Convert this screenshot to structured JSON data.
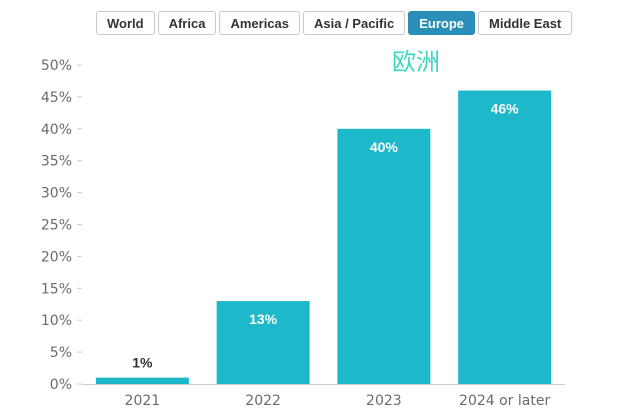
{
  "tabs": [
    {
      "label": "World",
      "active": false
    },
    {
      "label": "Africa",
      "active": false
    },
    {
      "label": "Americas",
      "active": false
    },
    {
      "label": "Asia / Pacific",
      "active": false
    },
    {
      "label": "Europe",
      "active": true
    },
    {
      "label": "Middle East",
      "active": false
    }
  ],
  "colors": {
    "bar": "#1db8c9",
    "title": "#3dd6c0",
    "active_tab": "#2a8fb7",
    "label_inside": "#ffffff",
    "label_outside": "#333333"
  },
  "chart_data": {
    "type": "bar",
    "title": "欧洲",
    "categories": [
      "2021",
      "2022",
      "2023",
      "2024 or later"
    ],
    "values": [
      1,
      13,
      40,
      46
    ],
    "data_labels": [
      "1%",
      "13%",
      "40%",
      "46%"
    ],
    "ylim": [
      0,
      50
    ],
    "yticks": [
      "0%",
      "5%",
      "10%",
      "15%",
      "20%",
      "25%",
      "30%",
      "35%",
      "40%",
      "45%",
      "50%"
    ],
    "grid": false,
    "legend": "none"
  }
}
